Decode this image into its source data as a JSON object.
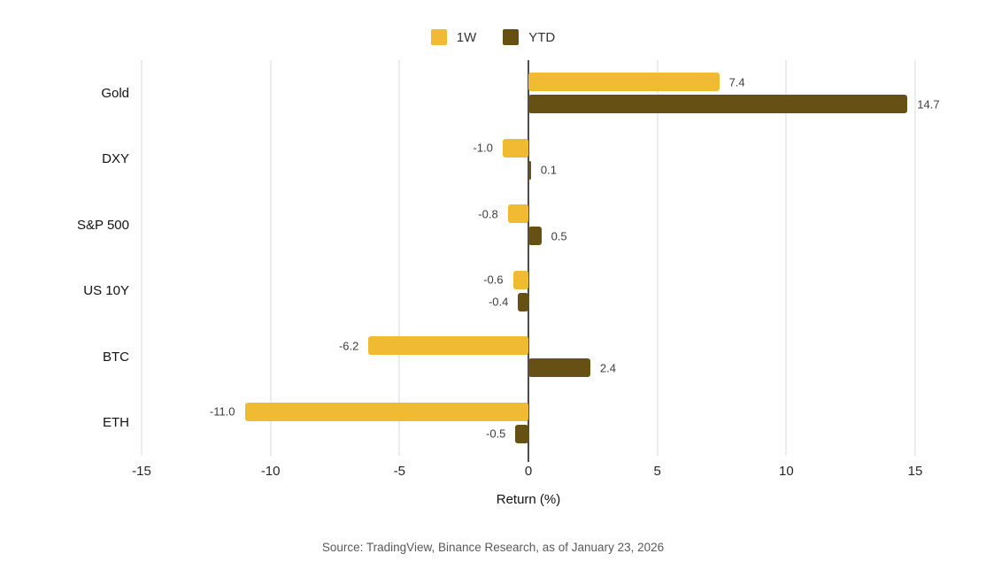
{
  "chart_data": {
    "type": "bar",
    "orientation": "horizontal",
    "categories": [
      "Gold",
      "DXY",
      "S&P 500",
      "US 10Y",
      "BTC",
      "ETH"
    ],
    "series": [
      {
        "name": "1W",
        "color": "#F0BB33",
        "values": [
          7.4,
          -1.0,
          -0.8,
          -0.6,
          -6.2,
          -11.0
        ]
      },
      {
        "name": "YTD",
        "color": "#665014",
        "values": [
          14.7,
          0.1,
          0.5,
          -0.4,
          2.4,
          -0.5
        ]
      }
    ],
    "title": "",
    "xlabel": "Return (%)",
    "ylabel": "",
    "xlim": [
      -15,
      15
    ],
    "xticks": [
      -15,
      -10,
      -5,
      0,
      5,
      10,
      15
    ],
    "grid": true,
    "legend_position": "top",
    "value_labels": true
  },
  "legend": {
    "items": [
      {
        "label": "1W",
        "color": "#F0BB33"
      },
      {
        "label": "YTD",
        "color": "#665014"
      }
    ]
  },
  "axis": {
    "title": "Return (%)"
  },
  "source_note": "Source: TradingView, Binance Research, as of January 23, 2026",
  "colors": {
    "bar_1w": "#F0BB33",
    "bar_ytd": "#665014",
    "grid": "#D9D9D9",
    "zero_line": "#4D4D4D",
    "value_text": "#3D3D3D",
    "label_text": "#111111",
    "source_text": "#595959",
    "background": "#FFFFFF"
  }
}
